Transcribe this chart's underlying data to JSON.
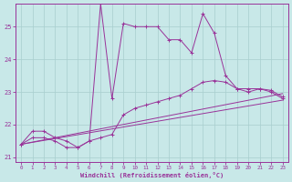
{
  "background_color": "#c8e8e8",
  "line_color": "#993399",
  "xlabel": "Windchill (Refroidissement éolien,°C)",
  "xlim": [
    -0.5,
    23.5
  ],
  "ylim": [
    20.85,
    25.7
  ],
  "yticks": [
    21,
    22,
    23,
    24,
    25
  ],
  "xticks": [
    0,
    1,
    2,
    3,
    4,
    5,
    6,
    7,
    8,
    9,
    10,
    11,
    12,
    13,
    14,
    15,
    16,
    17,
    18,
    19,
    20,
    21,
    22,
    23
  ],
  "main_x": [
    0,
    1,
    2,
    3,
    4,
    5,
    6,
    7,
    8,
    9,
    10,
    11,
    12,
    13,
    14,
    15,
    16,
    17,
    18,
    19,
    20,
    21,
    22,
    23
  ],
  "main_y": [
    21.4,
    21.8,
    21.8,
    21.6,
    21.5,
    21.3,
    21.5,
    25.7,
    22.8,
    25.1,
    25.0,
    25.0,
    25.0,
    24.6,
    24.6,
    24.2,
    25.4,
    24.8,
    23.5,
    23.1,
    23.0,
    23.1,
    23.0,
    22.8
  ],
  "curve2_x": [
    0,
    1,
    2,
    3,
    4,
    5,
    6,
    7,
    8,
    9,
    10,
    11,
    12,
    13,
    14,
    15,
    16,
    17,
    18,
    19,
    20,
    21,
    22,
    23
  ],
  "curve2_y": [
    21.4,
    21.6,
    21.6,
    21.5,
    21.3,
    21.3,
    21.5,
    21.6,
    21.7,
    22.3,
    22.5,
    22.6,
    22.7,
    22.8,
    22.9,
    23.1,
    23.3,
    23.35,
    23.3,
    23.1,
    23.1,
    23.1,
    23.05,
    22.85
  ],
  "line3_x": [
    0,
    23
  ],
  "line3_y": [
    21.4,
    22.95
  ],
  "line4_x": [
    0,
    23
  ],
  "line4_y": [
    21.4,
    22.75
  ]
}
